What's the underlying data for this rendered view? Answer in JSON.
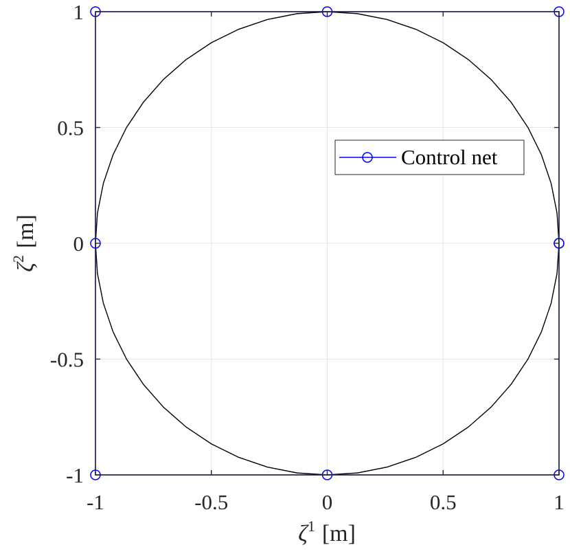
{
  "chart_data": {
    "type": "line",
    "title": "",
    "xlabel": {
      "symbol": "ζ",
      "sup": "1",
      "unit": "[m]"
    },
    "ylabel": {
      "symbol": "ζ",
      "sup": "2",
      "unit": "[m]"
    },
    "xlim": [
      -1,
      1
    ],
    "ylim": [
      -1,
      1
    ],
    "xticks": [
      -1,
      -0.5,
      0,
      0.5,
      1
    ],
    "yticks": [
      -1,
      -0.5,
      0,
      0.5,
      1
    ],
    "xtick_labels": [
      "-1",
      "-0.5",
      "0",
      "0.5",
      "1"
    ],
    "ytick_labels": [
      "-1",
      "-0.5",
      "0",
      "0.5",
      "1"
    ],
    "grid": true,
    "legend_position": "upper-right",
    "series": [
      {
        "name": "Control net",
        "color": "#0000ff",
        "marker": "circle",
        "x": [
          1,
          1,
          0,
          -1,
          -1,
          -1,
          0,
          1,
          1
        ],
        "y": [
          0,
          1,
          1,
          1,
          0,
          -1,
          -1,
          -1,
          0
        ]
      },
      {
        "color": "#000000",
        "shape": "circle",
        "center": [
          0,
          0
        ],
        "radius": 1
      }
    ]
  }
}
